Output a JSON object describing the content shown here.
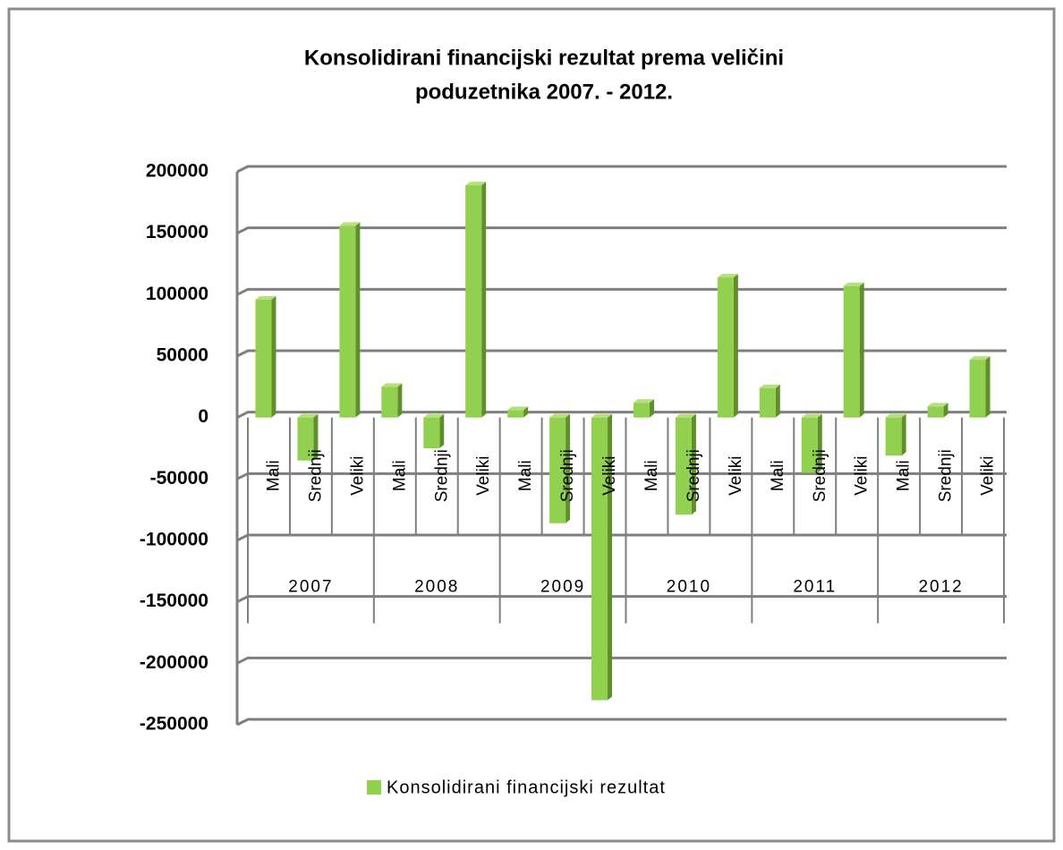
{
  "chart_data": {
    "type": "bar",
    "title": "Konsolidirani financijski rezultat prema veličini",
    "subtitle": "poduzetnika 2007. - 2012.",
    "categories": [
      "Mali",
      "Srednji",
      "Veliki",
      "Mali",
      "Srednji",
      "Veliki",
      "Mali",
      "Srednji",
      "Veliki",
      "Mali",
      "Srednji",
      "Veliki",
      "Mali",
      "Srednji",
      "Veliki",
      "Mali",
      "Srednji",
      "Veliki"
    ],
    "groups": [
      "2007",
      "2008",
      "2009",
      "2010",
      "2011",
      "2012"
    ],
    "series": [
      {
        "name": "Konsolidirani financijski rezultat",
        "color": "#92d050",
        "values": [
          96000,
          -35000,
          156000,
          25000,
          -25000,
          189000,
          6000,
          -86000,
          -230000,
          12000,
          -79000,
          114000,
          24000,
          -45000,
          107000,
          -31000,
          9000,
          47000
        ]
      }
    ],
    "ylim": [
      -250000,
      200000
    ],
    "yticks": [
      -250000,
      -200000,
      -150000,
      -100000,
      -50000,
      0,
      50000,
      100000,
      150000,
      200000
    ],
    "grid": true,
    "legend": "bottom"
  }
}
